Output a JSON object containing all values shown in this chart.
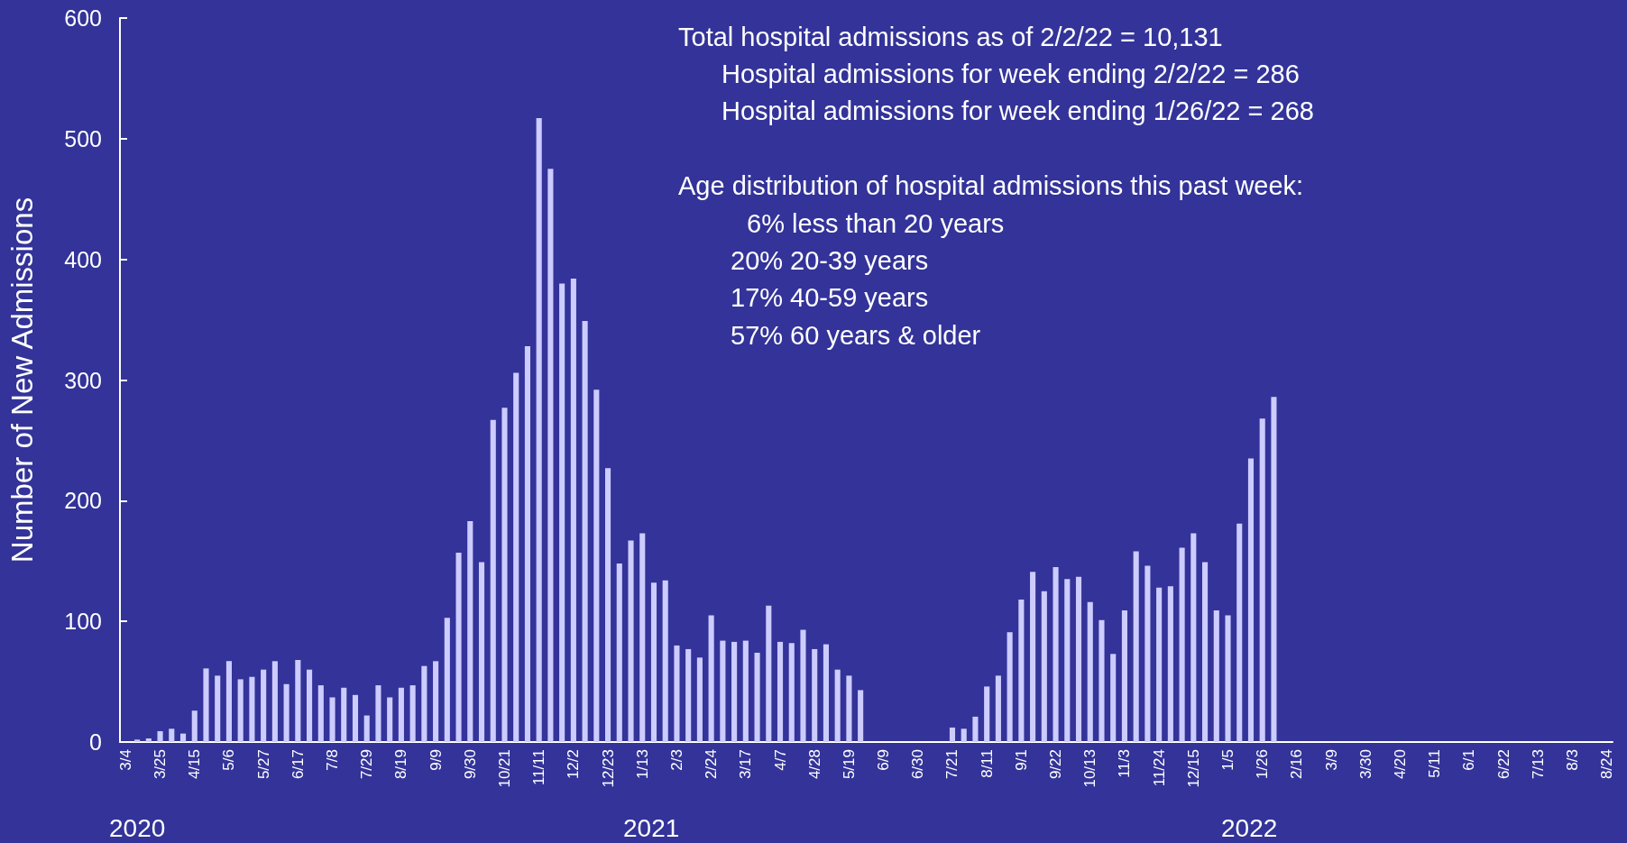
{
  "chart_data": {
    "type": "bar",
    "ylabel": "Number of New Admissions",
    "color": "#ccccff",
    "ylim": [
      0,
      600
    ],
    "yticks": [
      0,
      100,
      200,
      300,
      400,
      500,
      600
    ],
    "grid": false,
    "categories": [
      "3/4",
      null,
      null,
      "3/25",
      null,
      null,
      "4/15",
      null,
      null,
      "5/6",
      null,
      null,
      "5/27",
      null,
      null,
      "6/17",
      null,
      null,
      "7/8",
      null,
      null,
      "7/29",
      null,
      null,
      "8/19",
      null,
      null,
      "9/9",
      null,
      null,
      "9/30",
      null,
      null,
      "10/21",
      null,
      null,
      "11/11",
      null,
      null,
      "12/2",
      null,
      null,
      "12/23",
      null,
      null,
      "1/13",
      null,
      null,
      "2/3",
      null,
      null,
      "2/24",
      null,
      null,
      "3/17",
      null,
      null,
      "4/7",
      null,
      null,
      "4/28",
      null,
      null,
      "5/19",
      null,
      null,
      "6/9",
      null,
      null,
      "6/30",
      null,
      null,
      "7/21",
      null,
      null,
      "8/11",
      null,
      null,
      "9/1",
      null,
      null,
      "9/22",
      null,
      null,
      "10/13",
      null,
      null,
      "11/3",
      null,
      null,
      "11/24",
      null,
      null,
      "12/15",
      null,
      null,
      "1/5",
      null,
      null,
      "1/26",
      null,
      null,
      "2/16",
      null,
      null,
      "3/9",
      null,
      null,
      "3/30",
      null,
      null,
      "4/20",
      null,
      null,
      "5/11",
      null,
      null,
      "6/1",
      null,
      null,
      "6/22",
      null,
      null,
      "7/13",
      null,
      null,
      "8/3",
      null,
      null,
      "8/24"
    ],
    "values": [
      0,
      2,
      3,
      9,
      11,
      7,
      26,
      61,
      55,
      67,
      52,
      54,
      60,
      67,
      48,
      68,
      60,
      47,
      37,
      45,
      39,
      22,
      47,
      37,
      45,
      47,
      63,
      67,
      103,
      157,
      183,
      149,
      267,
      277,
      306,
      328,
      517,
      475,
      380,
      384,
      349,
      292,
      227,
      148,
      167,
      173,
      132,
      134,
      80,
      77,
      70,
      105,
      84,
      83,
      84,
      74,
      113,
      83,
      82,
      93,
      77,
      81,
      60,
      55,
      43,
      0,
      0,
      0,
      0,
      0,
      0,
      0,
      12,
      11,
      21,
      46,
      55,
      91,
      118,
      141,
      125,
      145,
      135,
      137,
      116,
      101,
      73,
      109,
      158,
      146,
      128,
      129,
      161,
      173,
      149,
      109,
      105,
      181,
      235,
      268,
      286,
      0,
      0,
      0,
      0,
      0,
      0,
      0,
      0,
      0,
      0,
      0,
      0,
      0,
      0,
      0,
      0,
      0,
      0,
      0,
      0,
      0,
      0,
      0,
      0,
      0,
      0,
      0,
      0,
      0
    ],
    "annotations": [
      "Total hospital admissions as of 2/2/22 = 10,131",
      "Hospital admissions for week ending 2/2/22 = 286",
      "Hospital admissions for week ending 1/26/22 = 268",
      "Age distribution of hospital admissions this past week:",
      "6% less than 20 years",
      "20% 20-39 years",
      "17% 40-59 years",
      "57% 60 years & older",
      "2020",
      "2021",
      "2022"
    ]
  }
}
